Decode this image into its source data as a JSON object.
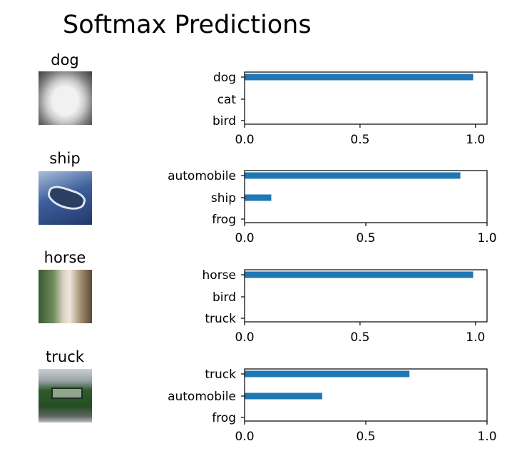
{
  "colors": {
    "bar": "#1f77b4",
    "axis": "#000000",
    "background": "#ffffff"
  },
  "chart_data": {
    "type": "bar",
    "title": "Softmax Predictions",
    "xlim": [
      0,
      1.0
    ],
    "x_ticks": [
      "0.0",
      "0.5",
      "1.0"
    ],
    "panels": [
      {
        "image_label": "dog",
        "image_icon": "dog-photo",
        "categories": [
          "dog",
          "cat",
          "bird"
        ],
        "values": [
          0.99,
          0.0,
          0.0
        ],
        "xlim": [
          0,
          1.05
        ]
      },
      {
        "image_label": "ship",
        "image_icon": "boat-photo",
        "categories": [
          "automobile",
          "ship",
          "frog"
        ],
        "values": [
          0.89,
          0.11,
          0.0
        ],
        "xlim": [
          0,
          1.0
        ]
      },
      {
        "image_label": "horse",
        "image_icon": "horse-photo",
        "categories": [
          "horse",
          "bird",
          "truck"
        ],
        "values": [
          0.99,
          0.0,
          0.0
        ],
        "xlim": [
          0,
          1.05
        ]
      },
      {
        "image_label": "truck",
        "image_icon": "truck-photo",
        "categories": [
          "truck",
          "automobile",
          "frog"
        ],
        "values": [
          0.68,
          0.32,
          0.0
        ],
        "xlim": [
          0,
          1.0
        ]
      }
    ]
  }
}
